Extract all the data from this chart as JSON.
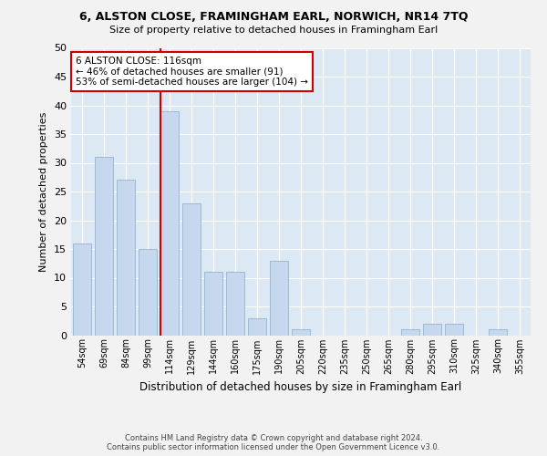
{
  "title1": "6, ALSTON CLOSE, FRAMINGHAM EARL, NORWICH, NR14 7TQ",
  "title2": "Size of property relative to detached houses in Framingham Earl",
  "xlabel": "Distribution of detached houses by size in Framingham Earl",
  "ylabel": "Number of detached properties",
  "categories": [
    "54sqm",
    "69sqm",
    "84sqm",
    "99sqm",
    "114sqm",
    "129sqm",
    "144sqm",
    "160sqm",
    "175sqm",
    "190sqm",
    "205sqm",
    "220sqm",
    "235sqm",
    "250sqm",
    "265sqm",
    "280sqm",
    "295sqm",
    "310sqm",
    "325sqm",
    "340sqm",
    "355sqm"
  ],
  "values": [
    16,
    31,
    27,
    15,
    39,
    23,
    11,
    11,
    3,
    13,
    1,
    0,
    0,
    0,
    0,
    1,
    2,
    2,
    0,
    1,
    0
  ],
  "bar_color": "#c5d8ed",
  "bar_edge_color": "#a0b8d0",
  "highlight_index": 4,
  "vline_color": "#cc0000",
  "annotation_title": "6 ALSTON CLOSE: 116sqm",
  "annotation_line1": "← 46% of detached houses are smaller (91)",
  "annotation_line2": "53% of semi-detached houses are larger (104) →",
  "annotation_box_color": "#ffffff",
  "annotation_box_edge": "#cc0000",
  "footer1": "Contains HM Land Registry data © Crown copyright and database right 2024.",
  "footer2": "Contains public sector information licensed under the Open Government Licence v3.0.",
  "bg_color": "#dde8f5",
  "fig_bg_color": "#f2f2f2",
  "grid_color": "#ffffff",
  "ylim": [
    0,
    50
  ],
  "yticks": [
    0,
    5,
    10,
    15,
    20,
    25,
    30,
    35,
    40,
    45,
    50
  ]
}
